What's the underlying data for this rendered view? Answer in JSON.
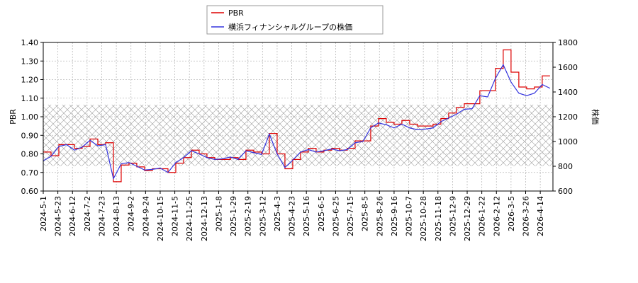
{
  "chart_data": {
    "type": "line",
    "y_label": "PBR",
    "y2_label": "株価",
    "x": [
      0,
      8,
      16,
      24,
      32,
      40,
      48,
      56,
      64,
      72,
      80,
      88,
      96,
      104,
      112,
      120,
      128,
      136,
      144,
      152,
      160,
      168,
      176,
      184,
      192,
      200,
      208,
      216,
      224,
      232,
      240,
      248,
      256,
      264,
      272,
      280,
      288,
      296,
      304,
      312,
      320,
      328,
      336,
      344,
      352,
      360,
      368,
      376,
      384,
      392,
      400,
      408,
      416,
      424,
      432,
      440,
      448,
      456,
      464,
      472,
      480,
      488,
      496,
      504,
      512,
      520
    ],
    "xlim": [
      0,
      523
    ],
    "xticks": [
      {
        "value": 0,
        "label": "2024-5-1"
      },
      {
        "value": 15,
        "label": "2024-5-23"
      },
      {
        "value": 30,
        "label": "2024-6-12"
      },
      {
        "value": 45,
        "label": "2024-7-2"
      },
      {
        "value": 60,
        "label": "2024-7-23"
      },
      {
        "value": 75,
        "label": "2024-8-13"
      },
      {
        "value": 90,
        "label": "2024-9-2"
      },
      {
        "value": 105,
        "label": "2024-9-24"
      },
      {
        "value": 120,
        "label": "2024-10-15"
      },
      {
        "value": 135,
        "label": "2024-11-5"
      },
      {
        "value": 150,
        "label": "2024-11-25"
      },
      {
        "value": 165,
        "label": "2024-12-13"
      },
      {
        "value": 180,
        "label": "2025-1-8"
      },
      {
        "value": 195,
        "label": "2025-1-29"
      },
      {
        "value": 210,
        "label": "2025-2-19"
      },
      {
        "value": 225,
        "label": "2025-3-12"
      },
      {
        "value": 240,
        "label": "2025-4-3"
      },
      {
        "value": 255,
        "label": "2025-4-23"
      },
      {
        "value": 270,
        "label": "2025-5-16"
      },
      {
        "value": 285,
        "label": "2025-6-5"
      },
      {
        "value": 300,
        "label": "2025-6-25"
      },
      {
        "value": 315,
        "label": "2025-7-15"
      },
      {
        "value": 330,
        "label": "2025-8-5"
      },
      {
        "value": 345,
        "label": "2025-8-26"
      },
      {
        "value": 360,
        "label": "2025-9-16"
      },
      {
        "value": 375,
        "label": "2025-10-7"
      },
      {
        "value": 390,
        "label": "2025-10-28"
      },
      {
        "value": 405,
        "label": "2025-11-18"
      },
      {
        "value": 420,
        "label": "2025-12-9"
      },
      {
        "value": 435,
        "label": "2025-12-29"
      },
      {
        "value": 450,
        "label": "2026-1-22"
      },
      {
        "value": 465,
        "label": "2026-2-12"
      },
      {
        "value": 480,
        "label": "2026-3-5"
      },
      {
        "value": 495,
        "label": "2026-3-26"
      },
      {
        "value": 510,
        "label": "2026-4-14"
      }
    ],
    "ylim": [
      0.6,
      1.4
    ],
    "yticks": [
      {
        "value": 0.6,
        "label": "0.60"
      },
      {
        "value": 0.7,
        "label": "0.70"
      },
      {
        "value": 0.8,
        "label": "0.80"
      },
      {
        "value": 0.9,
        "label": "0.90"
      },
      {
        "value": 1.0,
        "label": "1.00"
      },
      {
        "value": 1.1,
        "label": "1.10"
      },
      {
        "value": 1.2,
        "label": "1.20"
      },
      {
        "value": 1.3,
        "label": "1.30"
      },
      {
        "value": 1.4,
        "label": "1.40"
      }
    ],
    "y2lim": [
      600,
      1800
    ],
    "y2ticks": [
      600,
      800,
      1000,
      1200,
      1400,
      1600,
      1800
    ],
    "hatch_band": [
      0.735,
      1.065
    ],
    "grid": true,
    "series": [
      {
        "name": "PBR",
        "color": "#dd0000",
        "step": true,
        "values": [
          0.81,
          0.79,
          0.85,
          0.85,
          0.83,
          0.84,
          0.88,
          0.85,
          0.86,
          0.65,
          0.74,
          0.75,
          0.73,
          0.71,
          0.72,
          0.72,
          0.7,
          0.75,
          0.78,
          0.82,
          0.8,
          0.78,
          0.77,
          0.77,
          0.78,
          0.77,
          0.82,
          0.81,
          0.8,
          0.91,
          0.8,
          0.72,
          0.77,
          0.81,
          0.83,
          0.81,
          0.82,
          0.83,
          0.82,
          0.83,
          0.87,
          0.87,
          0.95,
          0.99,
          0.97,
          0.96,
          0.98,
          0.96,
          0.95,
          0.95,
          0.96,
          0.99,
          1.02,
          1.05,
          1.07,
          1.07,
          1.14,
          1.14,
          1.26,
          1.36,
          1.24,
          1.16,
          1.15,
          1.16,
          1.22,
          1.22
        ]
      },
      {
        "name": "横浜フィナンシャルグループの株価",
        "color": "#3333dd",
        "axis": "y2",
        "values": [
          845,
          880,
          960,
          975,
          930,
          955,
          1010,
          965,
          975,
          700,
          820,
          830,
          800,
          770,
          775,
          785,
          750,
          830,
          870,
          925,
          900,
          870,
          855,
          860,
          875,
          855,
          925,
          910,
          895,
          1060,
          900,
          790,
          850,
          915,
          935,
          915,
          925,
          940,
          925,
          935,
          990,
          1000,
          1110,
          1150,
          1135,
          1110,
          1140,
          1110,
          1095,
          1100,
          1110,
          1160,
          1190,
          1220,
          1260,
          1265,
          1370,
          1360,
          1510,
          1620,
          1480,
          1390,
          1370,
          1390,
          1460,
          1430
        ]
      }
    ]
  }
}
